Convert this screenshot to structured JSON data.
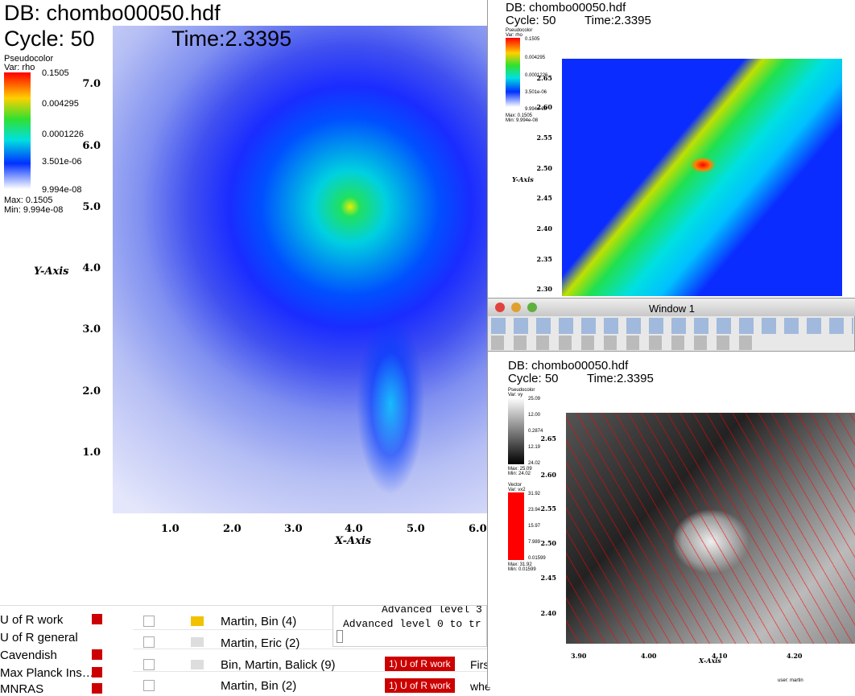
{
  "main_window": {
    "title": "DB: chombo00050.hdf",
    "cycle": "Cycle: 50",
    "time": "Time:2.3395",
    "legend": {
      "plot": "Pseudocolor",
      "var": "Var: rho",
      "labels": [
        "0.1505",
        "0.004295",
        "0.0001226",
        "3.501e-06",
        "9.994e-08"
      ],
      "max": "Max: 0.1505",
      "min": "Min: 9.994e-08"
    },
    "y_axis": "Y-Axis",
    "x_axis": "X-Axis",
    "yticks": [
      "7.0",
      "6.0",
      "5.0",
      "4.0",
      "3.0",
      "2.0",
      "1.0"
    ],
    "xticks": [
      "1.0",
      "2.0",
      "3.0",
      "4.0",
      "5.0",
      "6.0"
    ]
  },
  "zoom_window": {
    "title": "DB: chombo00050.hdf",
    "cycle": "Cycle: 50",
    "time": "Time:2.3395",
    "legend": {
      "plot": "Pseudocolor",
      "var": "Var: rho",
      "labels": [
        "0.1505",
        "0.004295",
        "0.0001226",
        "3.501e-06",
        "9.994e-08"
      ],
      "max": "Max: 0.1505",
      "min": "Min: 9.994e-08"
    },
    "y_axis": "Y-Axis",
    "yticks": [
      "2.65",
      "2.60",
      "2.55",
      "2.50",
      "2.45",
      "2.40",
      "2.35",
      "2.30"
    ]
  },
  "toolbar_window": {
    "title": "Window 1"
  },
  "vector_window": {
    "title": "DB: chombo00050.hdf",
    "cycle": "Cycle: 50",
    "time": "Time:2.3395",
    "legend": {
      "plot": "Pseudocolor",
      "var": "Var: vy",
      "labels": [
        "25.09",
        "12.00",
        "0.2874",
        "12.19",
        "24.02"
      ],
      "max": "Max: 25.09",
      "min": "Min: 24.02"
    },
    "vector_legend": {
      "plot": "Vector",
      "var": "Var: vx2",
      "labels": [
        "31.92",
        "23.94",
        "15.97",
        "7.989",
        "0.01599"
      ],
      "max": "Max: 31.92",
      "min": "Min: 0.01599"
    },
    "x_axis": "X-Axis",
    "yticks": [
      "2.65",
      "2.60",
      "2.55",
      "2.50",
      "2.45",
      "2.40"
    ],
    "xticks": [
      "3.90",
      "4.00",
      "4.10",
      "4.20"
    ],
    "user": "user: martin"
  },
  "mail": {
    "folders": [
      "U of R work",
      "U of R general",
      "Cavendish",
      "Max Planck Ins…",
      "MNRAS"
    ],
    "messages": [
      {
        "from": "Martin, Bin (4)"
      },
      {
        "from": "Martin, Eric (2)"
      },
      {
        "from": "Bin, Martin, Balick (9)",
        "tag": "1) U of R work",
        "snippet": "Firs"
      },
      {
        "from": "Martin, Bin (2)",
        "tag": "1) U of R work",
        "snippet": "whe"
      }
    ]
  },
  "console": {
    "lines": [
      "Advanced level  3",
      "Advanced level  0 to tr"
    ]
  }
}
